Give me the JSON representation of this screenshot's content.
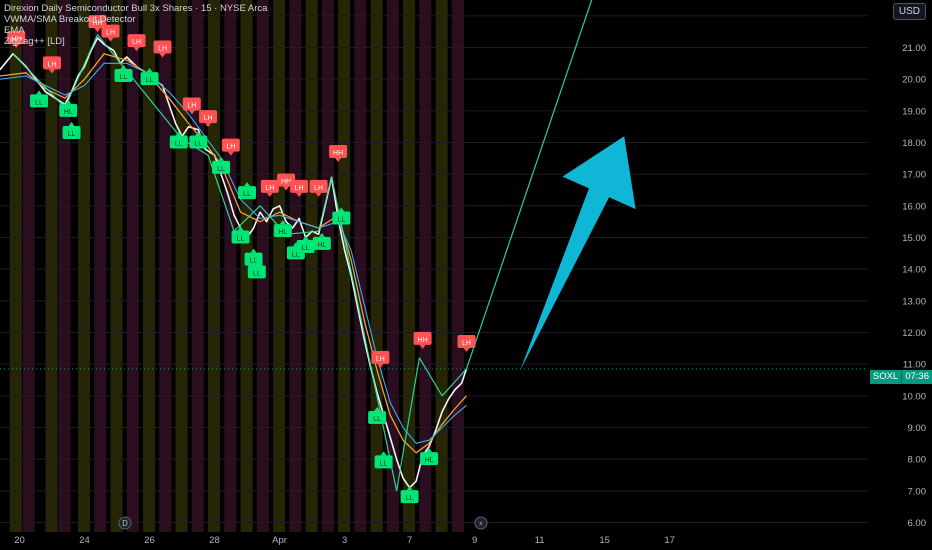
{
  "legend": {
    "title": "Direxion Daily Semiconductor Bull 3x Shares · 15 · NYSE Arca",
    "line2": "VWMA/SMA Breakout Detector",
    "line3": "EMA",
    "line4": "ZigZag++ [LD]"
  },
  "currency": "USD",
  "price_tag": {
    "symbol": "SOXL",
    "countdown": "07:36"
  },
  "colors": {
    "up": "#00e676",
    "down": "#ff5252",
    "arrow": "#10b6d6",
    "trend": "#2ee8a0"
  },
  "event_icons": [
    "D",
    "⚡"
  ],
  "chart_data": {
    "type": "line",
    "title": "Direxion Daily Semiconductor Bull 3x Shares · 15 · NYSE Arca",
    "ylabel": "USD",
    "ylim": [
      5.7,
      22.5
    ],
    "y_ticks": [
      6,
      7,
      8,
      9,
      10,
      11,
      12,
      13,
      14,
      15,
      16,
      17,
      18,
      19,
      20,
      21,
      22
    ],
    "y_tick_labels": [
      "6.00",
      "7.00",
      "8.00",
      "9.00",
      "10.00",
      "11.00",
      "12.00",
      "13.00",
      "14.00",
      "15.00",
      "16.00",
      "17.00",
      "18.00",
      "19.00",
      "20.00",
      "21.00",
      "22.00"
    ],
    "x_ticks": [
      {
        "day": 0,
        "label": "20"
      },
      {
        "day": 2,
        "label": "24"
      },
      {
        "day": 4,
        "label": "26"
      },
      {
        "day": 6,
        "label": "28"
      },
      {
        "day": 8,
        "label": "Apr"
      },
      {
        "day": 10,
        "label": "3"
      },
      {
        "day": 12,
        "label": "7"
      },
      {
        "day": 14,
        "label": "9"
      },
      {
        "day": 16,
        "label": "11"
      },
      {
        "day": 18,
        "label": "15"
      },
      {
        "day": 20,
        "label": "17"
      }
    ],
    "xlim": [
      -0.6,
      26.1
    ],
    "last_price": 10.85,
    "series": [
      {
        "name": "SOXL",
        "points": [
          [
            -0.6,
            20.3
          ],
          [
            -0.2,
            20.8
          ],
          [
            0.2,
            20.4
          ],
          [
            0.5,
            20.0
          ],
          [
            0.8,
            19.6
          ],
          [
            1.1,
            19.4
          ],
          [
            1.4,
            19.2
          ],
          [
            1.6,
            19.6
          ],
          [
            1.8,
            20.1
          ],
          [
            2.0,
            20.4
          ],
          [
            2.2,
            20.9
          ],
          [
            2.4,
            21.3
          ],
          [
            2.6,
            21.1
          ],
          [
            2.9,
            20.9
          ],
          [
            3.1,
            20.5
          ],
          [
            3.3,
            20.7
          ],
          [
            3.6,
            20.4
          ],
          [
            3.9,
            20.2
          ],
          [
            4.1,
            20.0
          ],
          [
            4.4,
            19.8
          ],
          [
            4.6,
            19.2
          ],
          [
            4.8,
            18.6
          ],
          [
            5.0,
            18.2
          ],
          [
            5.2,
            18.5
          ],
          [
            5.5,
            18.4
          ],
          [
            5.7,
            17.8
          ],
          [
            6.0,
            17.6
          ],
          [
            6.2,
            17.0
          ],
          [
            6.4,
            16.4
          ],
          [
            6.6,
            15.7
          ],
          [
            6.8,
            15.3
          ],
          [
            7.0,
            15.0
          ],
          [
            7.2,
            15.3
          ],
          [
            7.4,
            15.8
          ],
          [
            7.6,
            15.5
          ],
          [
            7.8,
            15.9
          ],
          [
            8.0,
            16.0
          ],
          [
            8.2,
            15.5
          ],
          [
            8.4,
            15.3
          ],
          [
            8.6,
            15.6
          ],
          [
            8.8,
            15.0
          ],
          [
            9.0,
            15.2
          ],
          [
            9.2,
            15.1
          ],
          [
            9.4,
            16.0
          ],
          [
            9.6,
            16.9
          ],
          [
            9.8,
            15.6
          ],
          [
            10.0,
            14.6
          ],
          [
            10.2,
            13.8
          ],
          [
            10.4,
            12.8
          ],
          [
            10.6,
            11.8
          ],
          [
            10.8,
            10.9
          ],
          [
            11.0,
            10.1
          ],
          [
            11.2,
            9.4
          ],
          [
            11.4,
            8.7
          ],
          [
            11.6,
            8.0
          ],
          [
            11.8,
            7.4
          ],
          [
            12.0,
            7.1
          ],
          [
            12.2,
            7.3
          ],
          [
            12.4,
            8.1
          ],
          [
            12.6,
            8.4
          ],
          [
            12.8,
            8.9
          ],
          [
            13.0,
            9.5
          ],
          [
            13.2,
            9.9
          ],
          [
            13.4,
            10.2
          ],
          [
            13.6,
            10.4
          ],
          [
            13.75,
            10.85
          ]
        ]
      },
      {
        "name": "EMA",
        "points": [
          [
            -0.6,
            20.1
          ],
          [
            0.2,
            20.2
          ],
          [
            0.8,
            19.7
          ],
          [
            1.4,
            19.4
          ],
          [
            2.0,
            20.0
          ],
          [
            2.6,
            20.8
          ],
          [
            3.3,
            20.6
          ],
          [
            3.9,
            20.2
          ],
          [
            4.6,
            19.4
          ],
          [
            5.2,
            18.6
          ],
          [
            5.7,
            18.0
          ],
          [
            6.2,
            17.3
          ],
          [
            6.8,
            15.8
          ],
          [
            7.4,
            15.5
          ],
          [
            8.0,
            15.8
          ],
          [
            8.6,
            15.5
          ],
          [
            9.2,
            15.3
          ],
          [
            9.8,
            15.7
          ],
          [
            10.2,
            14.3
          ],
          [
            10.6,
            12.4
          ],
          [
            11.0,
            10.8
          ],
          [
            11.4,
            9.4
          ],
          [
            11.8,
            8.6
          ],
          [
            12.2,
            8.2
          ],
          [
            12.6,
            8.5
          ],
          [
            13.0,
            9.1
          ],
          [
            13.4,
            9.6
          ],
          [
            13.75,
            10.0
          ]
        ]
      },
      {
        "name": "VWMA",
        "points": [
          [
            -0.6,
            20.0
          ],
          [
            0.2,
            20.1
          ],
          [
            0.8,
            19.8
          ],
          [
            1.4,
            19.5
          ],
          [
            2.0,
            19.8
          ],
          [
            2.6,
            20.5
          ],
          [
            3.3,
            20.5
          ],
          [
            3.9,
            20.2
          ],
          [
            4.6,
            19.6
          ],
          [
            5.2,
            18.9
          ],
          [
            5.7,
            18.2
          ],
          [
            6.2,
            17.5
          ],
          [
            6.8,
            16.2
          ],
          [
            7.4,
            15.6
          ],
          [
            8.0,
            15.7
          ],
          [
            8.6,
            15.5
          ],
          [
            9.2,
            15.3
          ],
          [
            9.8,
            15.5
          ],
          [
            10.2,
            14.6
          ],
          [
            10.6,
            12.9
          ],
          [
            11.0,
            11.2
          ],
          [
            11.4,
            9.8
          ],
          [
            11.8,
            9.0
          ],
          [
            12.2,
            8.5
          ],
          [
            12.6,
            8.6
          ],
          [
            13.0,
            9.0
          ],
          [
            13.4,
            9.4
          ],
          [
            13.75,
            9.7
          ]
        ]
      },
      {
        "name": "ZigZag",
        "points": [
          [
            -0.2,
            20.8
          ],
          [
            1.4,
            19.1
          ],
          [
            2.4,
            21.4
          ],
          [
            5.0,
            18.1
          ],
          [
            5.8,
            17.6
          ],
          [
            6.6,
            15.2
          ],
          [
            7.4,
            16.0
          ],
          [
            8.2,
            15.1
          ],
          [
            9.2,
            15.2
          ],
          [
            9.6,
            16.9
          ],
          [
            11.6,
            7.0
          ],
          [
            12.3,
            11.2
          ],
          [
            13.0,
            10.0
          ],
          [
            13.75,
            10.85
          ],
          [
            17.6,
            22.5
          ]
        ]
      }
    ],
    "zigzag_labels": [
      {
        "text": "HH",
        "day": -0.1,
        "price": 21.3,
        "dir": "up"
      },
      {
        "text": "LL",
        "day": 0.6,
        "price": 19.3,
        "dir": "down"
      },
      {
        "text": "LH",
        "day": 1.0,
        "price": 20.5,
        "dir": "up"
      },
      {
        "text": "HL",
        "day": 1.5,
        "price": 19.0,
        "dir": "down"
      },
      {
        "text": "LL",
        "day": 1.6,
        "price": 18.3,
        "dir": "down"
      },
      {
        "text": "HH",
        "day": 2.4,
        "price": 21.8,
        "dir": "up"
      },
      {
        "text": "LH",
        "day": 2.8,
        "price": 21.5,
        "dir": "up"
      },
      {
        "text": "LL",
        "day": 3.2,
        "price": 20.1,
        "dir": "down"
      },
      {
        "text": "LH",
        "day": 3.6,
        "price": 21.2,
        "dir": "up"
      },
      {
        "text": "LL",
        "day": 4.0,
        "price": 20.0,
        "dir": "down"
      },
      {
        "text": "LH",
        "day": 4.4,
        "price": 21.0,
        "dir": "up"
      },
      {
        "text": "LL",
        "day": 4.9,
        "price": 18.0,
        "dir": "down"
      },
      {
        "text": "LH",
        "day": 5.3,
        "price": 19.2,
        "dir": "up"
      },
      {
        "text": "LL",
        "day": 5.5,
        "price": 18.0,
        "dir": "down"
      },
      {
        "text": "LH",
        "day": 5.8,
        "price": 18.8,
        "dir": "up"
      },
      {
        "text": "LL",
        "day": 6.2,
        "price": 17.2,
        "dir": "down"
      },
      {
        "text": "LH",
        "day": 6.5,
        "price": 17.9,
        "dir": "up"
      },
      {
        "text": "LL",
        "day": 7.0,
        "price": 16.4,
        "dir": "down"
      },
      {
        "text": "LL",
        "day": 6.8,
        "price": 15.0,
        "dir": "down"
      },
      {
        "text": "LL",
        "day": 7.2,
        "price": 14.3,
        "dir": "down"
      },
      {
        "text": "LL",
        "day": 7.3,
        "price": 13.9,
        "dir": "down"
      },
      {
        "text": "LH",
        "day": 7.7,
        "price": 16.6,
        "dir": "up"
      },
      {
        "text": "HH",
        "day": 8.2,
        "price": 16.8,
        "dir": "up"
      },
      {
        "text": "LH",
        "day": 8.6,
        "price": 16.6,
        "dir": "up"
      },
      {
        "text": "HL",
        "day": 8.1,
        "price": 15.2,
        "dir": "down"
      },
      {
        "text": "LL",
        "day": 8.5,
        "price": 14.5,
        "dir": "down"
      },
      {
        "text": "LL",
        "day": 8.8,
        "price": 14.7,
        "dir": "down"
      },
      {
        "text": "LH",
        "day": 9.2,
        "price": 16.6,
        "dir": "up"
      },
      {
        "text": "HL",
        "day": 9.3,
        "price": 14.8,
        "dir": "down"
      },
      {
        "text": "HH",
        "day": 9.8,
        "price": 17.7,
        "dir": "up"
      },
      {
        "text": "LL",
        "day": 9.9,
        "price": 15.6,
        "dir": "down"
      },
      {
        "text": "LH",
        "day": 11.1,
        "price": 11.2,
        "dir": "up"
      },
      {
        "text": "LL",
        "day": 11.0,
        "price": 9.3,
        "dir": "down"
      },
      {
        "text": "LL",
        "day": 11.2,
        "price": 7.9,
        "dir": "down"
      },
      {
        "text": "LL",
        "day": 12.0,
        "price": 6.8,
        "dir": "down"
      },
      {
        "text": "HH",
        "day": 12.4,
        "price": 11.8,
        "dir": "up"
      },
      {
        "text": "HL",
        "day": 12.6,
        "price": 8.0,
        "dir": "down"
      },
      {
        "text": "LH",
        "day": 13.75,
        "price": 11.7,
        "dir": "up"
      }
    ],
    "session_bands": [
      -0.3,
      0.1,
      0.8,
      1.2,
      1.8,
      2.3,
      2.8,
      3.3,
      3.8,
      4.3,
      4.8,
      5.3,
      5.8,
      6.3,
      6.8,
      7.3,
      7.8,
      8.3,
      8.8,
      9.3,
      9.8,
      10.3,
      10.8,
      11.3,
      11.8,
      12.3,
      12.8,
      13.3
    ],
    "arrow": {
      "from": [
        15.4,
        10.8
      ],
      "to": [
        18.6,
        18.2
      ]
    }
  }
}
